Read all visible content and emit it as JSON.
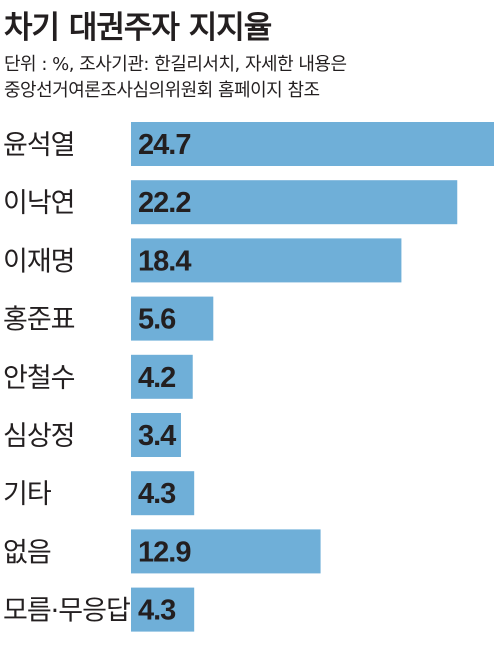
{
  "header": {
    "title": "차기 대권주자 지지율",
    "note_line1": "단위 : %, 조사기관: 한길리서치, 자세한 내용은",
    "note_line2": "중앙선거여론조사심의위원회 홈페이지 참조"
  },
  "colors": {
    "bar": "#6fafd8",
    "text": "#231f20"
  },
  "chart_data": {
    "type": "bar",
    "orientation": "horizontal",
    "title": "차기 대권주자 지지율",
    "unit": "%",
    "categories": [
      "윤석열",
      "이낙연",
      "이재명",
      "홍준표",
      "안철수",
      "심상정",
      "기타",
      "없음",
      "모름·무응답"
    ],
    "values": [
      24.7,
      22.2,
      18.4,
      5.6,
      4.2,
      3.4,
      4.3,
      12.9,
      4.3
    ],
    "value_labels": [
      "24.7",
      "22.2",
      "18.4",
      "5.6",
      "4.2",
      "3.4",
      "4.3",
      "12.9",
      "4.3"
    ],
    "xlim": [
      0,
      24.7
    ],
    "grid": false,
    "legend": "none"
  }
}
